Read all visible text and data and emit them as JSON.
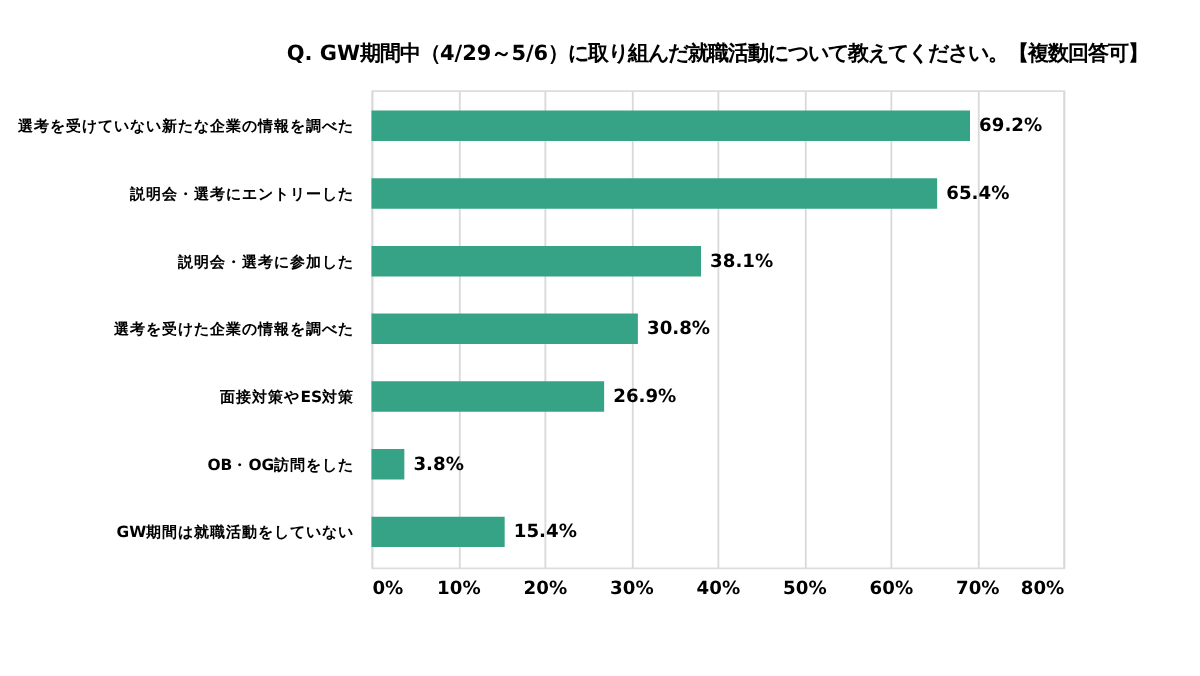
{
  "chart_data": {
    "type": "bar",
    "orientation": "horizontal",
    "title": "Q. GW期間中（4/29～5/6）に取り組んだ就職活動について教えてください。【複数回答可】",
    "categories": [
      "選考を受けていない新たな企業の情報を調べた",
      "説明会・選考にエントリーした",
      "説明会・選考に参加した",
      "選考を受けた企業の情報を調べた",
      "面接対策やES対策",
      "OB・OG訪問をした",
      "GW期間は就職活動をしていない"
    ],
    "values": [
      69.2,
      65.4,
      38.1,
      30.8,
      26.9,
      3.8,
      15.4
    ],
    "value_labels": [
      "69.2%",
      "65.4%",
      "38.1%",
      "30.8%",
      "26.9%",
      "3.8%",
      "15.4%"
    ],
    "color": "#36a386",
    "xlim": [
      0,
      80
    ],
    "xticks": [
      {
        "value": 0,
        "label": "0%"
      },
      {
        "value": 10,
        "label": "10%"
      },
      {
        "value": 20,
        "label": "20%"
      },
      {
        "value": 30,
        "label": "30%"
      },
      {
        "value": 40,
        "label": "40%"
      },
      {
        "value": 50,
        "label": "50%"
      },
      {
        "value": 60,
        "label": "60%"
      },
      {
        "value": 70,
        "label": "70%"
      },
      {
        "value": 80,
        "label": "80%"
      }
    ],
    "grid": "x"
  }
}
